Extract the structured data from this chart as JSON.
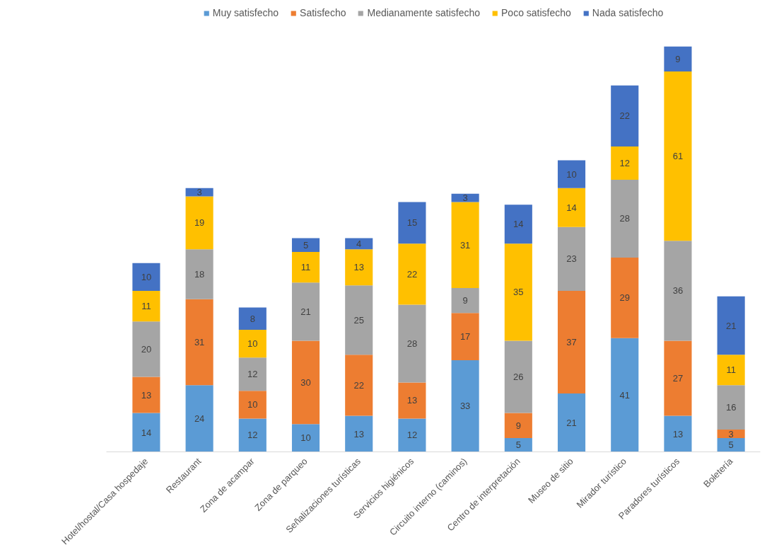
{
  "chart_data": {
    "type": "bar",
    "stacked": true,
    "data_labels": true,
    "legend": "top",
    "categories": [
      "Hotel/hostal/Casa hospedaje",
      "Restaurant",
      "Zona de acampar",
      "Zona de parqueo",
      "Señalizaciones turísticas",
      "Servicios higiénicos",
      "Circuito interno (caminos)",
      "Centro de interpretación",
      "Museo de sitio",
      "Mirador turístico",
      "Paradores turísticos",
      "Boletería"
    ],
    "series": [
      {
        "name": "Muy satisfecho",
        "color": "#5b9bd5",
        "values": [
          14,
          24,
          12,
          10,
          13,
          12,
          33,
          5,
          21,
          41,
          13,
          5
        ]
      },
      {
        "name": "Satisfecho",
        "color": "#ed7d31",
        "values": [
          13,
          31,
          10,
          30,
          22,
          13,
          17,
          9,
          37,
          29,
          27,
          3
        ]
      },
      {
        "name": "Medianamente satisfecho",
        "color": "#a5a5a5",
        "values": [
          20,
          18,
          12,
          21,
          25,
          28,
          9,
          26,
          23,
          28,
          36,
          16
        ]
      },
      {
        "name": "Poco satisfecho",
        "color": "#ffc000",
        "values": [
          11,
          19,
          10,
          11,
          13,
          22,
          31,
          35,
          14,
          12,
          61,
          11
        ]
      },
      {
        "name": "Nada satisfecho",
        "color": "#4472c4",
        "values": [
          10,
          3,
          8,
          5,
          4,
          15,
          3,
          14,
          10,
          22,
          9,
          21
        ]
      }
    ]
  }
}
